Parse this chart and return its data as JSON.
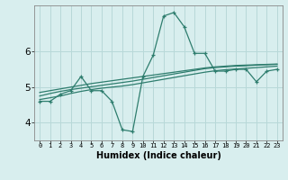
{
  "xlabel": "Humidex (Indice chaleur)",
  "x_values": [
    0,
    1,
    2,
    3,
    4,
    5,
    6,
    7,
    8,
    9,
    10,
    11,
    12,
    13,
    14,
    15,
    16,
    17,
    18,
    19,
    20,
    21,
    22,
    23
  ],
  "line1": [
    4.6,
    4.6,
    4.8,
    4.9,
    5.3,
    4.9,
    4.9,
    4.6,
    3.8,
    3.75,
    5.3,
    5.9,
    7.0,
    7.1,
    6.7,
    5.95,
    5.95,
    5.45,
    5.45,
    5.5,
    5.5,
    5.15,
    5.45,
    5.5
  ],
  "line2": [
    4.65,
    4.7,
    4.75,
    4.82,
    4.88,
    4.93,
    4.97,
    5.0,
    5.03,
    5.07,
    5.12,
    5.17,
    5.22,
    5.27,
    5.32,
    5.37,
    5.42,
    5.46,
    5.49,
    5.51,
    5.53,
    5.55,
    5.57,
    5.59
  ],
  "line3": [
    4.75,
    4.82,
    4.88,
    4.93,
    4.97,
    5.01,
    5.05,
    5.09,
    5.13,
    5.17,
    5.22,
    5.27,
    5.32,
    5.37,
    5.42,
    5.47,
    5.52,
    5.55,
    5.57,
    5.59,
    5.6,
    5.62,
    5.63,
    5.64
  ],
  "line4": [
    4.85,
    4.9,
    4.95,
    5.0,
    5.05,
    5.1,
    5.14,
    5.18,
    5.22,
    5.26,
    5.3,
    5.34,
    5.38,
    5.42,
    5.46,
    5.5,
    5.54,
    5.57,
    5.59,
    5.61,
    5.62,
    5.63,
    5.64,
    5.65
  ],
  "line_color": "#2e7d6e",
  "bg_color": "#d8eeee",
  "grid_color": "#b8d8d8",
  "ylim": [
    3.5,
    7.3
  ],
  "yticks": [
    4,
    5,
    6
  ],
  "xlim": [
    -0.5,
    23.5
  ]
}
